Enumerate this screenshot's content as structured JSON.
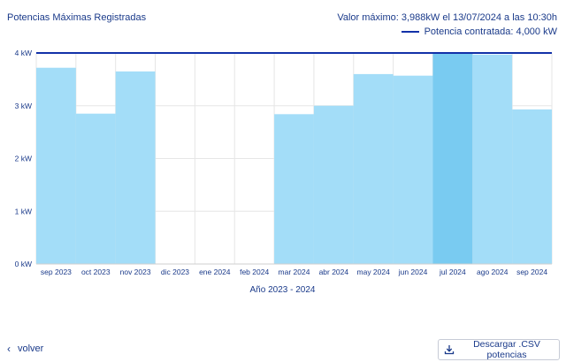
{
  "header": {
    "title": "Potencias Máximas Registradas",
    "max_label": "Valor máximo: 3,988kW el 13/07/2024 a las 10:30h",
    "legend_label": "Potencia contratada: 4,000 kW"
  },
  "footer": {
    "back_label": "volver",
    "csv_label": "Descargar .CSV potencias"
  },
  "colors": {
    "bar": "#a3ddf8",
    "bar_highlight": "#79cbf1",
    "contract_line": "#1231a8",
    "grid": "#e6e6e6",
    "text": "#1a3a8a"
  },
  "icons": {
    "back": "chevron-left-icon",
    "download": "download-icon"
  },
  "chart_data": {
    "type": "bar",
    "title": "Potencias Máximas Registradas",
    "xlabel": "Año 2023 - 2024",
    "ylabel": "",
    "categories": [
      "sep 2023",
      "oct 2023",
      "nov 2023",
      "dic 2023",
      "ene 2024",
      "feb 2024",
      "mar 2024",
      "abr 2024",
      "may 2024",
      "jun 2024",
      "jul 2024",
      "ago 2024",
      "sep 2024"
    ],
    "values": [
      3.72,
      2.85,
      3.65,
      null,
      null,
      null,
      2.84,
      3.0,
      3.6,
      3.57,
      3.988,
      3.97,
      2.93
    ],
    "highlight_index": 10,
    "contract_power": 4.0,
    "ylim": [
      0,
      4
    ],
    "yticks": [
      0,
      1,
      2,
      3,
      4
    ],
    "ytick_labels": [
      "0 kW",
      "1 kW",
      "2 kW",
      "3 kW",
      "4 kW"
    ],
    "grid": true,
    "legend": "top-right"
  }
}
